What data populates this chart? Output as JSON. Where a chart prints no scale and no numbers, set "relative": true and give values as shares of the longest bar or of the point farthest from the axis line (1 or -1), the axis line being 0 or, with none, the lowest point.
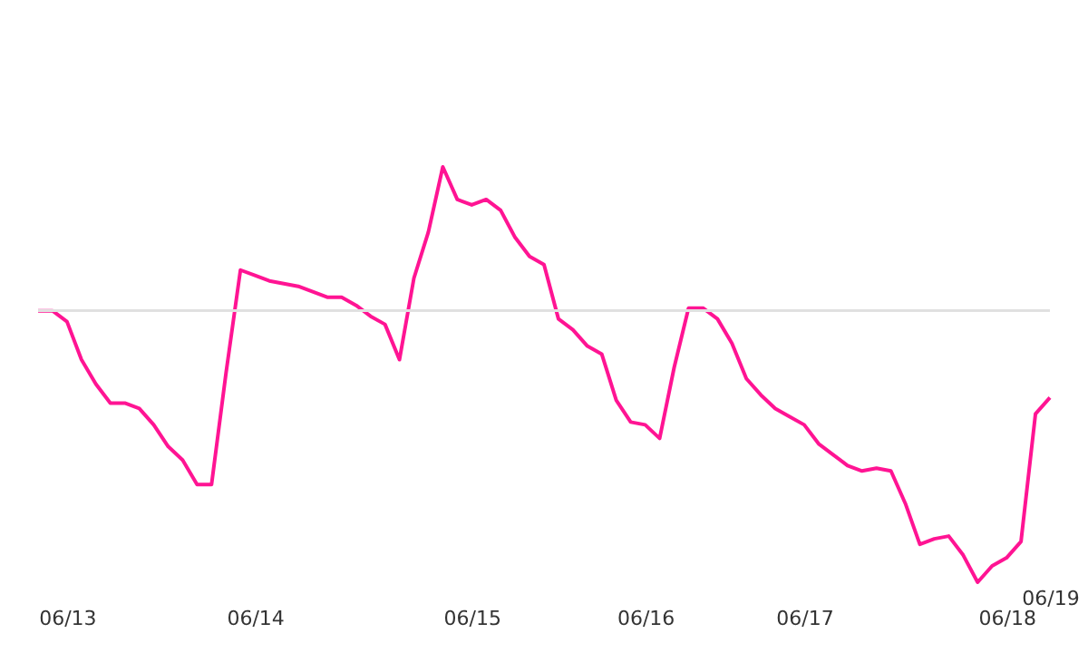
{
  "chart_data": {
    "type": "line",
    "relative": true,
    "tick_labels": "x",
    "categories": [
      null,
      null,
      "06/13",
      null,
      null,
      null,
      null,
      null,
      null,
      null,
      null,
      null,
      null,
      null,
      null,
      "06/14",
      null,
      null,
      null,
      null,
      null,
      null,
      null,
      null,
      null,
      null,
      null,
      null,
      null,
      null,
      "06/15",
      null,
      null,
      null,
      null,
      null,
      null,
      null,
      null,
      null,
      null,
      null,
      "06/16",
      null,
      null,
      null,
      null,
      null,
      null,
      null,
      null,
      null,
      null,
      "06/17",
      null,
      null,
      null,
      null,
      null,
      null,
      null,
      null,
      null,
      null,
      null,
      null,
      null,
      "06/18",
      null,
      null,
      "06/19"
    ],
    "series": [
      {
        "color": "#ff1493",
        "values": [
          0,
          0,
          -0.04,
          -0.18,
          -0.27,
          -0.34,
          -0.34,
          -0.36,
          -0.42,
          -0.5,
          -0.55,
          -0.64,
          -0.64,
          -0.23,
          0.15,
          0.13,
          0.11,
          0.1,
          0.09,
          0.07,
          0.05,
          0.05,
          0.02,
          -0.02,
          -0.05,
          -0.18,
          0.12,
          0.29,
          0.53,
          0.41,
          0.39,
          0.41,
          0.37,
          0.27,
          0.2,
          0.17,
          -0.03,
          -0.07,
          -0.13,
          -0.16,
          -0.33,
          -0.41,
          -0.42,
          -0.47,
          -0.21,
          0.01,
          0.01,
          -0.03,
          -0.12,
          -0.25,
          -0.31,
          -0.36,
          -0.39,
          -0.42,
          -0.49,
          -0.53,
          -0.57,
          -0.59,
          -0.58,
          -0.59,
          -0.71,
          -0.86,
          -0.84,
          -0.83,
          -0.9,
          -1,
          -0.94,
          -0.91,
          -0.85,
          -0.38,
          -0.32
        ]
      }
    ],
    "ref_lines": [
      {
        "axis": "y",
        "value": 0,
        "color": "#e0e0e0"
      }
    ]
  }
}
